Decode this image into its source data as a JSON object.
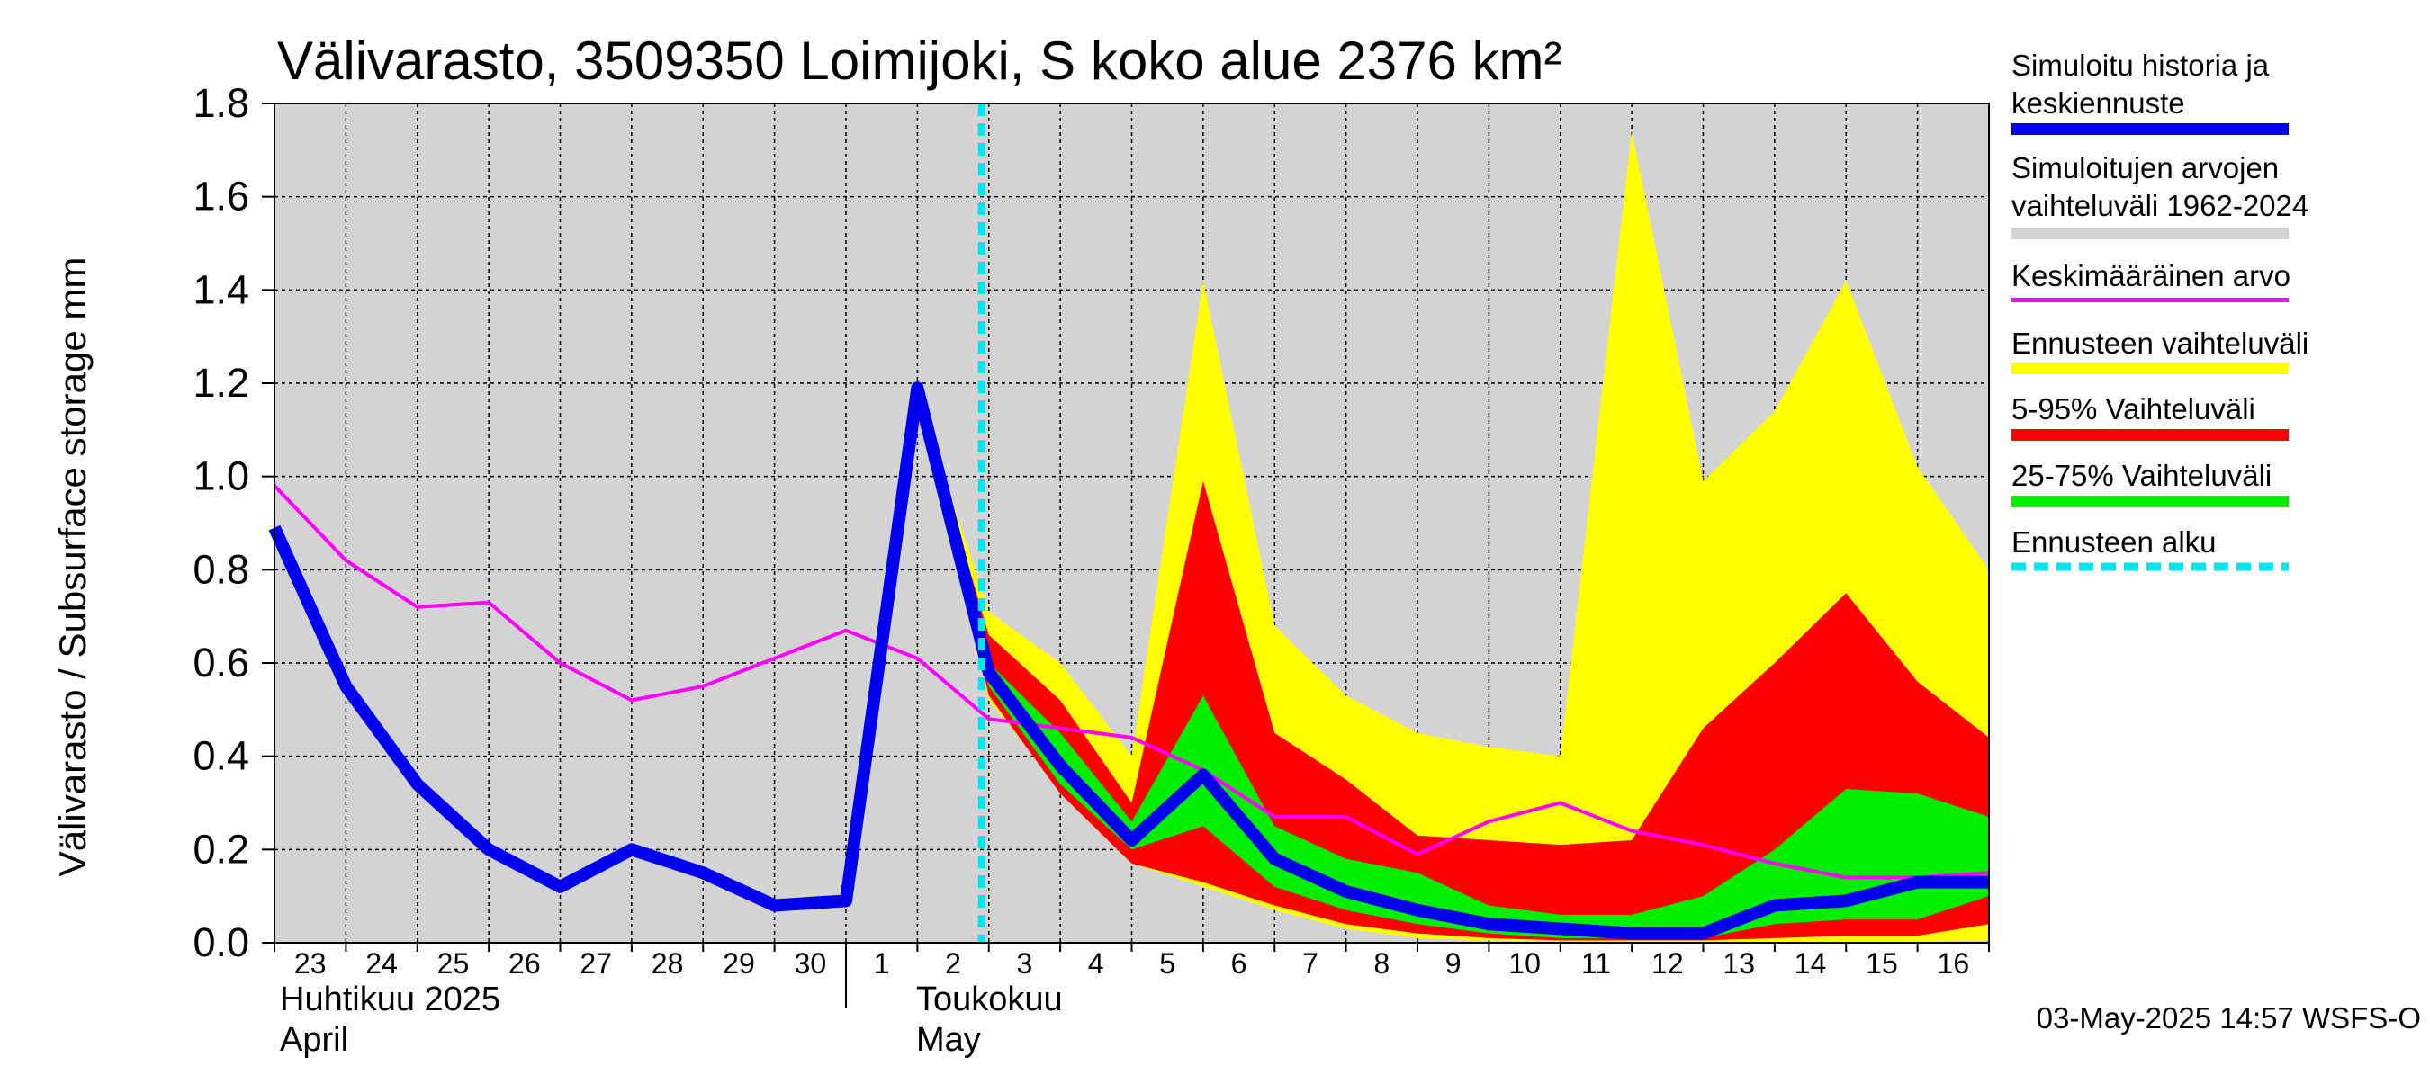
{
  "chart_data": {
    "type": "area",
    "title": "Välivarasto, 3509350 Loimijoki, S koko alue 2376 km²",
    "ylabel": "Välivarasto / Subsurface storage  mm",
    "ylim": [
      0,
      1.8
    ],
    "yticks": [
      "0.0",
      "0.2",
      "0.4",
      "0.6",
      "0.8",
      "1.0",
      "1.2",
      "1.4",
      "1.6",
      "1.8"
    ],
    "grid": true,
    "legend_position": "right",
    "x_day_labels": [
      "23",
      "24",
      "25",
      "26",
      "27",
      "28",
      "29",
      "30",
      "1",
      "2",
      "3",
      "4",
      "5",
      "6",
      "7",
      "8",
      "9",
      "10",
      "11",
      "12",
      "13",
      "14",
      "15",
      "16"
    ],
    "month_labels": [
      {
        "line1": "Huhtikuu  2025",
        "line2": "April"
      },
      {
        "line1": "Toukokuu",
        "line2": "May"
      }
    ],
    "forecast_start": "2025-05-03",
    "timestamp": "03-May-2025 14:57 WSFS-O",
    "legend": [
      {
        "label": "Simuloitu historia ja keskiennuste",
        "color": "#0000ee"
      },
      {
        "label": "Simuloitujen arvojen vaihteluväli 1962-2024",
        "color": "#d3d3d3"
      },
      {
        "label": "Keskimääräinen arvo",
        "color": "#ff00ff"
      },
      {
        "label": "Ennusteen vaihteluväli",
        "color": "#ffff00"
      },
      {
        "label": "5-95% Vaihteluväli",
        "color": "#ff0000"
      },
      {
        "label": "25-75% Vaihteluväli",
        "color": "#00ee00"
      },
      {
        "label": "Ennusteen alku",
        "color": "#00e5ee"
      }
    ],
    "hist_range": {
      "x": [
        "2025-04-23",
        "2025-04-24",
        "2025-04-25",
        "2025-04-26",
        "2025-04-27",
        "2025-04-28",
        "2025-04-29",
        "2025-04-30",
        "2025-05-01",
        "2025-05-02",
        "2025-05-03",
        "2025-05-04",
        "2025-05-05",
        "2025-05-06",
        "2025-05-07",
        "2025-05-08",
        "2025-05-09",
        "2025-05-10",
        "2025-05-11",
        "2025-05-12",
        "2025-05-13",
        "2025-05-14",
        "2025-05-15",
        "2025-05-16",
        "2025-05-17"
      ],
      "low": [
        0,
        0,
        0,
        0,
        0,
        0,
        0,
        0,
        0,
        0,
        0,
        0,
        0,
        0,
        0,
        0,
        0,
        0,
        0,
        0,
        0,
        0,
        0,
        0,
        0
      ],
      "high": [
        1.8,
        1.8,
        1.8,
        1.8,
        1.8,
        1.8,
        1.8,
        1.8,
        1.8,
        1.8,
        1.8,
        1.8,
        1.8,
        1.8,
        1.8,
        1.8,
        1.8,
        1.8,
        1.8,
        1.8,
        1.8,
        1.8,
        1.8,
        1.8,
        1.8
      ]
    },
    "forecast_x": [
      "2025-05-02",
      "2025-05-03",
      "2025-05-04",
      "2025-05-05",
      "2025-05-06",
      "2025-05-07",
      "2025-05-08",
      "2025-05-09",
      "2025-05-10",
      "2025-05-11",
      "2025-05-12",
      "2025-05-13",
      "2025-05-14",
      "2025-05-15",
      "2025-05-16",
      "2025-05-17"
    ],
    "forecast_range": {
      "low": [
        1.18,
        0.52,
        0.33,
        0.17,
        0.12,
        0.07,
        0.03,
        0.01,
        0.005,
        0.003,
        0.002,
        0.002,
        0.002,
        0.002,
        0.002,
        0.005
      ],
      "high": [
        1.18,
        0.71,
        0.6,
        0.4,
        1.42,
        0.68,
        0.53,
        0.45,
        0.42,
        0.4,
        1.74,
        0.99,
        1.14,
        1.42,
        1.02,
        0.8
      ]
    },
    "p5_95": {
      "low": [
        1.18,
        0.53,
        0.32,
        0.17,
        0.13,
        0.08,
        0.04,
        0.02,
        0.01,
        0.005,
        0.005,
        0.005,
        0.01,
        0.015,
        0.015,
        0.04
      ],
      "high": [
        1.18,
        0.66,
        0.52,
        0.3,
        0.99,
        0.45,
        0.35,
        0.23,
        0.22,
        0.21,
        0.22,
        0.46,
        0.6,
        0.75,
        0.56,
        0.44
      ]
    },
    "p25_75": {
      "low": [
        1.18,
        0.55,
        0.34,
        0.2,
        0.25,
        0.12,
        0.07,
        0.04,
        0.02,
        0.01,
        0.01,
        0.01,
        0.04,
        0.05,
        0.05,
        0.1
      ],
      "high": [
        1.18,
        0.6,
        0.45,
        0.26,
        0.53,
        0.25,
        0.18,
        0.15,
        0.08,
        0.06,
        0.06,
        0.1,
        0.2,
        0.33,
        0.32,
        0.27
      ]
    },
    "series": [
      {
        "name": "Simuloitu historia ja keskiennuste",
        "x": [
          "2025-04-23",
          "2025-04-24",
          "2025-04-25",
          "2025-04-26",
          "2025-04-27",
          "2025-04-28",
          "2025-04-29",
          "2025-04-30",
          "2025-05-01",
          "2025-05-02",
          "2025-05-03",
          "2025-05-04",
          "2025-05-05",
          "2025-05-06",
          "2025-05-07",
          "2025-05-08",
          "2025-05-09",
          "2025-05-10",
          "2025-05-11",
          "2025-05-12",
          "2025-05-13",
          "2025-05-14",
          "2025-05-15",
          "2025-05-16",
          "2025-05-17"
        ],
        "values": [
          0.89,
          0.55,
          0.34,
          0.2,
          0.12,
          0.2,
          0.15,
          0.08,
          0.09,
          1.19,
          0.58,
          0.38,
          0.22,
          0.36,
          0.18,
          0.11,
          0.07,
          0.04,
          0.03,
          0.02,
          0.02,
          0.08,
          0.09,
          0.13,
          0.13
        ]
      },
      {
        "name": "Keskimääräinen arvo",
        "x": [
          "2025-04-23",
          "2025-04-24",
          "2025-04-25",
          "2025-04-26",
          "2025-04-27",
          "2025-04-28",
          "2025-04-29",
          "2025-04-30",
          "2025-05-01",
          "2025-05-02",
          "2025-05-03",
          "2025-05-04",
          "2025-05-05",
          "2025-05-06",
          "2025-05-07",
          "2025-05-08",
          "2025-05-09",
          "2025-05-10",
          "2025-05-11",
          "2025-05-12",
          "2025-05-13",
          "2025-05-14",
          "2025-05-15",
          "2025-05-16",
          "2025-05-17"
        ],
        "values": [
          0.98,
          0.82,
          0.72,
          0.73,
          0.6,
          0.52,
          0.55,
          0.61,
          0.67,
          0.61,
          0.48,
          0.46,
          0.44,
          0.37,
          0.27,
          0.27,
          0.19,
          0.26,
          0.3,
          0.24,
          0.21,
          0.17,
          0.14,
          0.14,
          0.15
        ]
      }
    ]
  }
}
